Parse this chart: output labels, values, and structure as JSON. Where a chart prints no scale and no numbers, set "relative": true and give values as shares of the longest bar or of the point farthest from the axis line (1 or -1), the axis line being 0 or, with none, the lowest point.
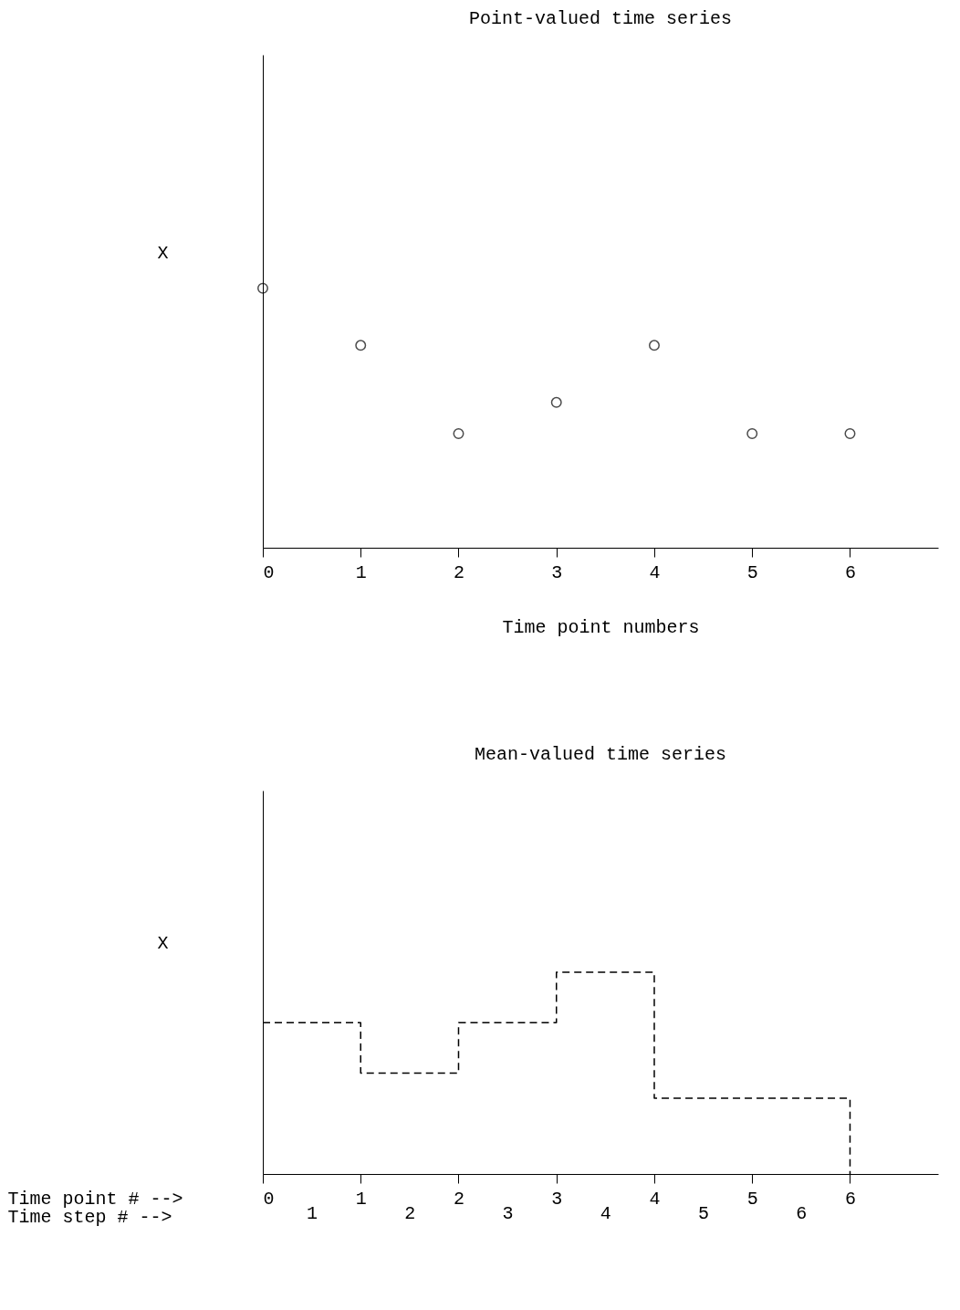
{
  "chart_data": [
    {
      "type": "scatter",
      "title": "Point-valued time series",
      "xlabel": "Time point numbers",
      "ylabel": "X",
      "relative": true,
      "tick_labels": "x",
      "marker": "circle",
      "color": "#000000",
      "xlim": [
        0,
        6.9
      ],
      "xticks": [
        0,
        1,
        2,
        3,
        4,
        5,
        6
      ],
      "x": [
        0,
        1,
        2,
        3,
        4,
        5,
        6
      ],
      "values": [
        1,
        0.78,
        0.44,
        0.56,
        0.78,
        0.44,
        0.44
      ]
    },
    {
      "type": "step",
      "line_style": "dashed",
      "title": "Mean-valued time series",
      "xlabel": "Time point # -->",
      "ylabel": "X",
      "relative": true,
      "tick_labels": "x",
      "color": "#000000",
      "xlim": [
        0,
        6.9
      ],
      "xticks": [
        0,
        1,
        2,
        3,
        4,
        5,
        6
      ],
      "x2label": "Time step #  -->",
      "x2lim": [
        0,
        6.9
      ],
      "x2ticks": [
        {
          "value": 0.5,
          "label": "1"
        },
        {
          "value": 1.5,
          "label": "2"
        },
        {
          "value": 2.5,
          "label": "3"
        },
        {
          "value": 3.5,
          "label": "4"
        },
        {
          "value": 4.5,
          "label": "5"
        },
        {
          "value": 5.5,
          "label": "6"
        }
      ],
      "x": [
        0,
        1,
        2,
        3,
        4,
        5,
        6
      ],
      "values": [
        0.75,
        0.5,
        0.75,
        1,
        0.375,
        0.375,
        0
      ]
    }
  ]
}
